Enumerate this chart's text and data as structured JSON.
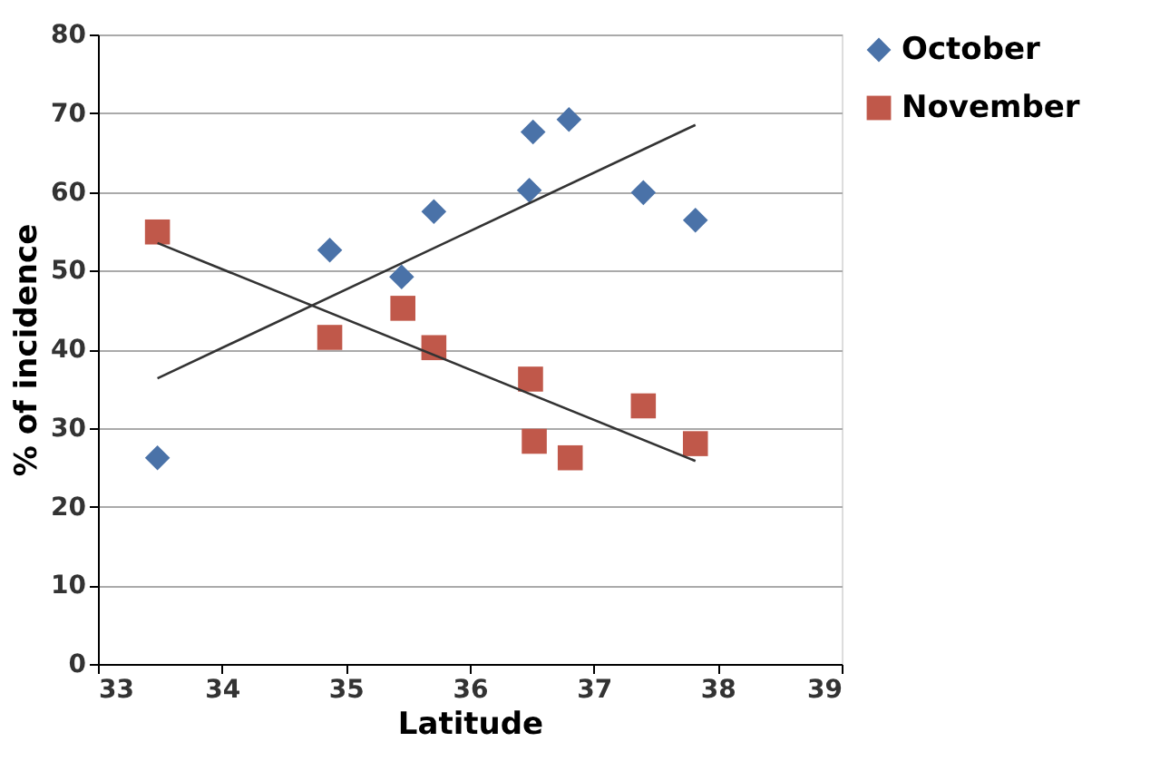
{
  "chart_data": {
    "type": "scatter",
    "xlabel": "Latitude",
    "ylabel": "% of incidence",
    "xlim": [
      33,
      39
    ],
    "xticks": [
      33,
      34,
      35,
      36,
      37,
      38,
      39
    ],
    "ylim": [
      0,
      80
    ],
    "yticks": [
      0,
      10,
      20,
      30,
      40,
      50,
      60,
      70,
      80
    ],
    "grid": "y",
    "legend": "right",
    "series": [
      {
        "name": "October",
        "color": "#4a72a8",
        "marker": "diamond",
        "x": [
          33.48,
          34.87,
          35.45,
          35.71,
          36.48,
          36.51,
          36.8,
          37.4,
          37.82
        ],
        "values": [
          26.2,
          52.6,
          49.2,
          57.5,
          60.2,
          67.6,
          69.2,
          59.9,
          56.4
        ]
      },
      {
        "name": "November",
        "color": "#c0584a",
        "marker": "square",
        "x": [
          33.48,
          34.87,
          35.46,
          35.71,
          36.49,
          36.52,
          36.81,
          37.4,
          37.82
        ],
        "values": [
          54.9,
          41.5,
          45.2,
          40.2,
          36.2,
          28.3,
          26.2,
          32.8,
          28.0
        ]
      },
      {
        "type": "line",
        "color": "#333333",
        "x": [
          33.48,
          37.82
        ],
        "values": [
          36.3,
          68.5
        ]
      },
      {
        "type": "line",
        "color": "#333333",
        "x": [
          33.48,
          37.82
        ],
        "values": [
          53.5,
          25.8
        ]
      }
    ]
  }
}
